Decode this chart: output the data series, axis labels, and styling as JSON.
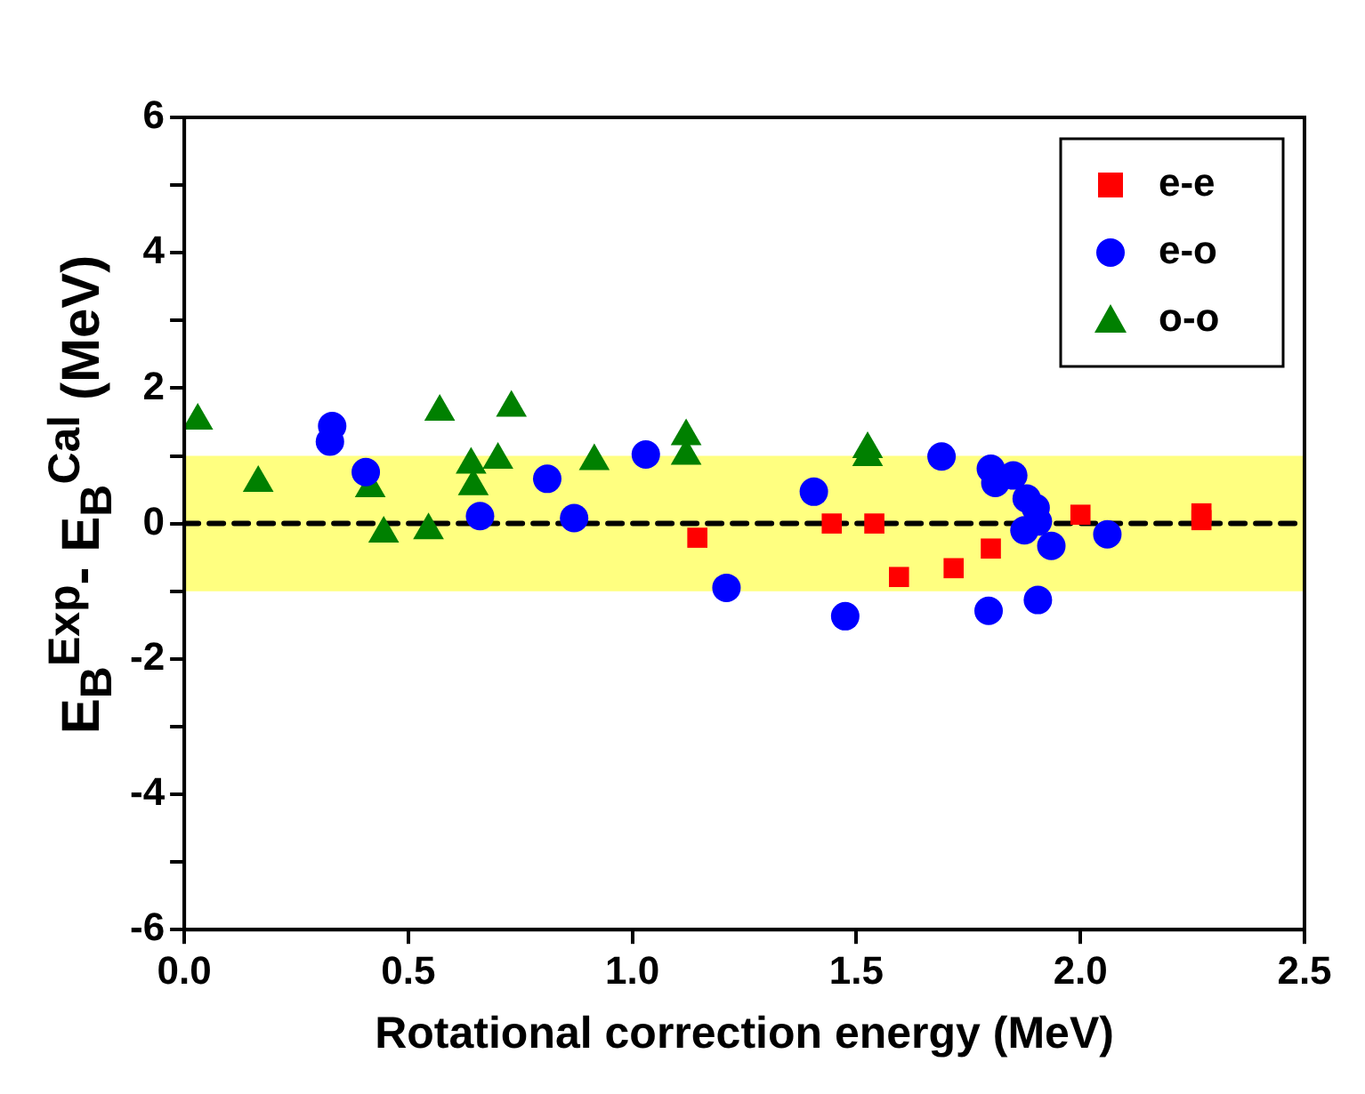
{
  "chart_data": {
    "type": "scatter",
    "xlabel": "Rotational correction energy (MeV)",
    "ylabel": "E$_{B}$$^{Exp}$- E$_{B}$$^{Cal}$  (MeV)",
    "xlim": [
      0,
      2.5
    ],
    "xticks": [
      {
        "value": 0,
        "label": "0.0"
      },
      {
        "value": 0.5,
        "label": "0.5"
      },
      {
        "value": 1,
        "label": "1.0"
      },
      {
        "value": 1.5,
        "label": "1.5"
      },
      {
        "value": 2,
        "label": "2.0"
      },
      {
        "value": 2.5,
        "label": "2.5"
      }
    ],
    "ylim": [
      -6,
      6
    ],
    "yticks": [
      -6,
      {
        "value": -5,
        "label": null
      },
      -4,
      {
        "value": -3,
        "label": null
      },
      -2,
      {
        "value": -1,
        "label": null
      },
      0,
      {
        "value": 1,
        "label": null
      },
      2,
      {
        "value": 3,
        "label": null
      },
      4,
      {
        "value": 5,
        "label": null
      },
      6
    ],
    "grid": false,
    "legend": "top right",
    "series": [
      {
        "name": "e-e",
        "color": "#ff0000",
        "marker": "square",
        "x": [
          1.145,
          1.445,
          1.54,
          1.595,
          1.717,
          1.8,
          2.0,
          2.27,
          2.27
        ],
        "values": [
          -0.21,
          0.0,
          0.0,
          -0.79,
          -0.66,
          -0.37,
          0.13,
          0.15,
          0.05
        ]
      },
      {
        "name": "e-o",
        "color": "#0000ff",
        "marker": "circle",
        "x": [
          0.33,
          0.325,
          0.405,
          0.66,
          0.81,
          0.87,
          1.03,
          1.21,
          1.405,
          1.475,
          1.69,
          1.8,
          1.81,
          1.85,
          1.88,
          1.9,
          1.905,
          1.875,
          1.935,
          2.06,
          1.795,
          1.905
        ],
        "values": [
          1.44,
          1.21,
          0.76,
          0.11,
          0.66,
          0.08,
          1.02,
          -0.95,
          0.47,
          -1.37,
          0.99,
          0.81,
          0.6,
          0.71,
          0.37,
          0.23,
          0.03,
          -0.1,
          -0.33,
          -0.16,
          -1.29,
          -1.13
        ]
      },
      {
        "name": "o-o",
        "color": "#008000",
        "marker": "triangle",
        "x": [
          0.03,
          0.165,
          0.415,
          0.445,
          0.545,
          0.57,
          0.64,
          0.645,
          0.7,
          0.73,
          0.915,
          1.12,
          1.12,
          1.525,
          1.525
        ],
        "values": [
          1.52,
          0.6,
          0.52,
          -0.15,
          -0.1,
          1.65,
          0.87,
          0.55,
          0.94,
          1.71,
          0.92,
          1.29,
          1.0,
          1.1,
          0.98
        ]
      }
    ],
    "ref_lines": [
      {
        "axis": "y",
        "value": 0,
        "color": "#000000",
        "line_style": "dashed"
      }
    ],
    "bands": [
      {
        "axis": "y",
        "from": -1,
        "to": 1,
        "color": "#ffff80"
      }
    ]
  }
}
